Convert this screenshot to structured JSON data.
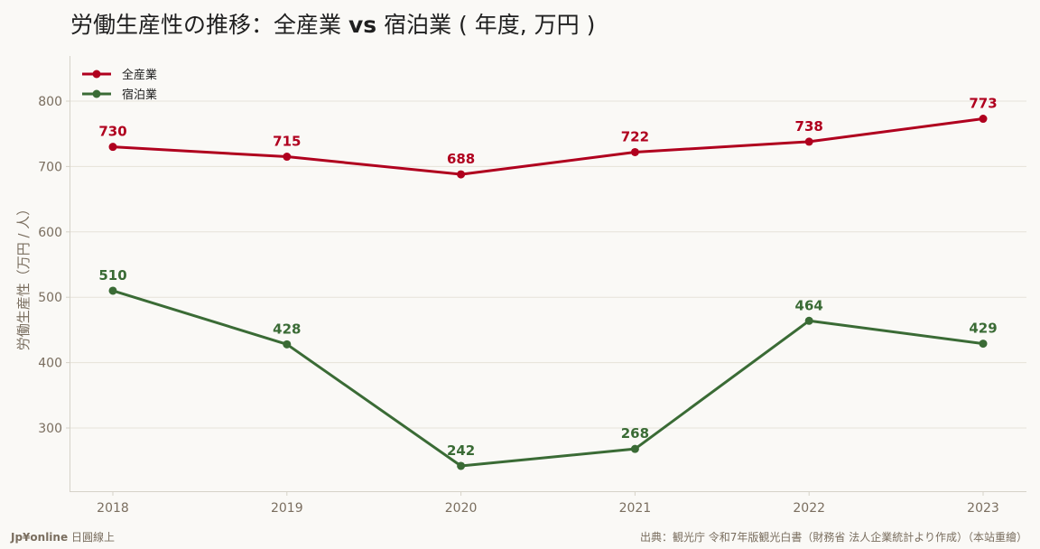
{
  "brand": {
    "name": "Jp¥online",
    "tagline": "日圓線上"
  },
  "source": "出典：観光庁 令和7年版観光白書（財務省 法人企業統計より作成）（本站重繪）",
  "chart_data": {
    "type": "line",
    "title": "労働生産性の推移：全産業 vs 宿泊業（年度, 万円）",
    "title_parts": {
      "a": "労働生産性の推移：全産業 ",
      "b": "vs",
      "c": " 宿泊業 ( 年度, 万円 )"
    },
    "xlabel": "",
    "ylabel": "労働生産性（万円 / 人）",
    "categories": [
      "2018",
      "2019",
      "2020",
      "2021",
      "2022",
      "2023"
    ],
    "yticks": [
      300,
      400,
      500,
      600,
      700,
      800
    ],
    "ylim": [
      205,
      870
    ],
    "grid": true,
    "legend_position": "top-left",
    "series": [
      {
        "name": "全産業",
        "color": "#b0001e",
        "values": [
          730,
          715,
          688,
          722,
          738,
          773
        ]
      },
      {
        "name": "宿泊業",
        "color": "#3a6b35",
        "values": [
          510,
          428,
          242,
          268,
          464,
          429
        ]
      }
    ]
  }
}
